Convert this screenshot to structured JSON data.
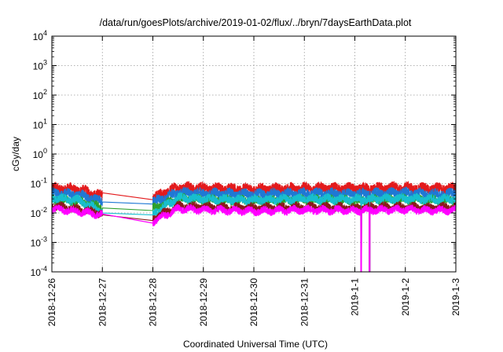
{
  "chart_data": {
    "type": "line",
    "title": "/data/run/goesPlots/archive/2019-01-02/flux/../bryn/7daysEarthData.plot",
    "xlabel": "Coordinated Universal Time (UTC)",
    "ylabel": "cGy/day",
    "yscale": "log",
    "ylim": [
      0.0001,
      10000
    ],
    "xlim": [
      "2018-12-26",
      "2019-01-03"
    ],
    "grid": true,
    "legend": "none",
    "x_ticks": [
      "2018-12-26",
      "2018-12-27",
      "2018-12-28",
      "2018-12-29",
      "2018-12-30",
      "2018-12-31",
      "2019-1-1",
      "2019-1-2",
      "2019-1-3"
    ],
    "y_ticks": [
      {
        "value": 0.0001,
        "base": "10",
        "exp": "-4"
      },
      {
        "value": 0.001,
        "base": "10",
        "exp": "-3"
      },
      {
        "value": 0.01,
        "base": "10",
        "exp": "-2"
      },
      {
        "value": 0.1,
        "base": "10",
        "exp": "-1"
      },
      {
        "value": 1,
        "base": "10",
        "exp": "0"
      },
      {
        "value": 10,
        "base": "10",
        "exp": "1"
      },
      {
        "value": 100,
        "base": "10",
        "exp": "2"
      },
      {
        "value": 1000,
        "base": "10",
        "exp": "3"
      },
      {
        "value": 10000,
        "base": "10",
        "exp": "4"
      }
    ],
    "data_gaps": [
      [
        "2018-12-27",
        "2018-12-28"
      ]
    ],
    "dropouts": [
      "2019-01-01T03:00",
      "2019-01-01T07:00"
    ],
    "series": [
      {
        "color": "#e31a1c",
        "values": [
          0.06,
          0.055,
          0.032,
          0.028,
          0.065,
          0.06,
          0.055,
          0.06,
          0.058,
          0.06,
          0.062,
          0.058,
          0.06
        ]
      },
      {
        "color": "#1f78d4",
        "values": [
          0.04,
          0.036,
          0.022,
          0.02,
          0.042,
          0.04,
          0.037,
          0.04,
          0.038,
          0.04,
          0.041,
          0.038,
          0.04
        ]
      },
      {
        "color": "#2ca02c",
        "values": [
          0.025,
          0.022,
          0.013,
          0.012,
          0.026,
          0.024,
          0.022,
          0.024,
          0.023,
          0.024,
          0.025,
          0.023,
          0.024
        ]
      },
      {
        "color": "#17becf",
        "values": [
          0.028,
          0.024,
          0.0095,
          0.0085,
          0.028,
          0.026,
          0.024,
          0.026,
          0.025,
          0.026,
          0.027,
          0.025,
          0.026
        ]
      },
      {
        "color": "#8b1a1a",
        "values": [
          0.015,
          0.012,
          0.0085,
          0.0055,
          0.015,
          0.014,
          0.013,
          0.014,
          0.013,
          0.014,
          0.014,
          0.013,
          0.014
        ]
      },
      {
        "color": "#ff00ff",
        "values": [
          0.012,
          0.01,
          0.0075,
          0.0045,
          0.012,
          0.011,
          0.01,
          0.011,
          0.0105,
          0.011,
          0.0115,
          0.0105,
          0.011
        ]
      }
    ],
    "series_x": [
      "2018-12-26",
      "2018-12-26T12:00",
      "2018-12-27",
      "2018-12-28",
      "2018-12-28T12:00",
      "2018-12-29",
      "2018-12-30",
      "2018-12-31",
      "2019-01-01",
      "2019-01-01T12:00",
      "2019-01-02",
      "2019-01-02T12:00",
      "2019-01-03"
    ]
  }
}
